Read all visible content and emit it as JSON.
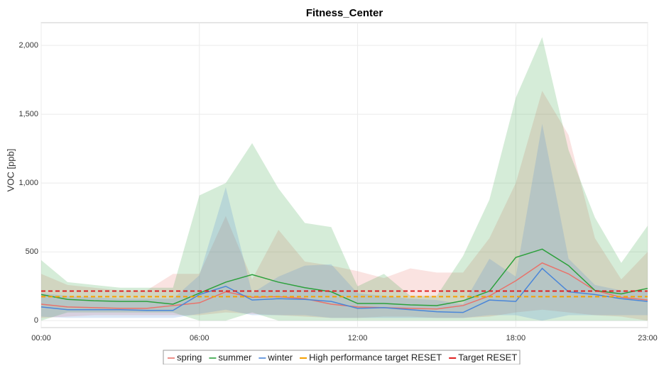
{
  "chart_data": {
    "type": "band-line",
    "title": "Fitness_Center",
    "y_label": "VOC [ppb]",
    "x": [
      0,
      1,
      2,
      3,
      4,
      5,
      6,
      7,
      8,
      9,
      10,
      11,
      12,
      13,
      14,
      15,
      16,
      17,
      18,
      19,
      20,
      21,
      22,
      23
    ],
    "xlim": [
      0,
      23
    ],
    "xticks": [
      {
        "value": 0,
        "label": "00:00"
      },
      {
        "value": 6,
        "label": "06:00"
      },
      {
        "value": 12,
        "label": "12:00"
      },
      {
        "value": 18,
        "label": "18:00"
      },
      {
        "value": 23,
        "label": "23:00"
      }
    ],
    "ylim": [
      -50,
      2165
    ],
    "yticks": [
      0,
      500,
      {
        "value": 1000,
        "label": "1,000"
      },
      {
        "value": 1500,
        "label": "1,500"
      },
      {
        "value": 2000,
        "label": "2,000"
      }
    ],
    "grid": true,
    "series": [
      {
        "name": "spring",
        "color": "#e8736b",
        "values": [
          120,
          100,
          95,
          90,
          90,
          110,
          130,
          210,
          170,
          175,
          160,
          120,
          100,
          95,
          90,
          85,
          110,
          180,
          290,
          420,
          340,
          220,
          170,
          150
        ],
        "upper": [
          340,
          260,
          240,
          220,
          220,
          340,
          340,
          760,
          300,
          660,
          430,
          400,
          360,
          310,
          380,
          350,
          350,
          600,
          1000,
          1670,
          1350,
          600,
          300,
          500
        ],
        "lower": [
          20,
          30,
          40,
          40,
          40,
          40,
          40,
          60,
          50,
          40,
          30,
          20,
          20,
          30,
          30,
          20,
          20,
          30,
          60,
          80,
          60,
          40,
          30,
          0
        ]
      },
      {
        "name": "summer",
        "color": "#2ca03c",
        "values": [
          190,
          155,
          145,
          140,
          140,
          120,
          200,
          280,
          335,
          280,
          240,
          210,
          125,
          125,
          115,
          110,
          145,
          215,
          460,
          520,
          400,
          220,
          195,
          235
        ],
        "upper": [
          440,
          280,
          260,
          240,
          240,
          240,
          910,
          1000,
          1290,
          960,
          710,
          680,
          250,
          340,
          180,
          180,
          470,
          880,
          1620,
          2060,
          1240,
          750,
          420,
          690
        ],
        "lower": [
          0,
          60,
          60,
          60,
          60,
          60,
          0,
          0,
          60,
          0,
          0,
          0,
          0,
          0,
          0,
          0,
          0,
          0,
          0,
          0,
          0,
          0,
          0,
          0
        ]
      },
      {
        "name": "winter",
        "color": "#4a86d8",
        "values": [
          100,
          80,
          80,
          80,
          75,
          75,
          190,
          250,
          150,
          160,
          155,
          140,
          90,
          95,
          80,
          65,
          60,
          150,
          140,
          380,
          210,
          190,
          160,
          140
        ],
        "upper": [
          200,
          180,
          170,
          160,
          160,
          160,
          330,
          970,
          200,
          320,
          400,
          410,
          200,
          180,
          160,
          150,
          120,
          450,
          320,
          1430,
          450,
          260,
          220,
          220
        ],
        "lower": [
          30,
          20,
          20,
          20,
          20,
          20,
          50,
          80,
          40,
          40,
          40,
          20,
          20,
          20,
          20,
          20,
          20,
          40,
          40,
          0,
          40,
          40,
          40,
          40
        ]
      }
    ],
    "reference_lines": [
      {
        "name": "High performance target RESET",
        "color": "#f5a000",
        "value": 175
      },
      {
        "name": "Target RESET",
        "color": "#e02020",
        "value": 215
      }
    ]
  }
}
